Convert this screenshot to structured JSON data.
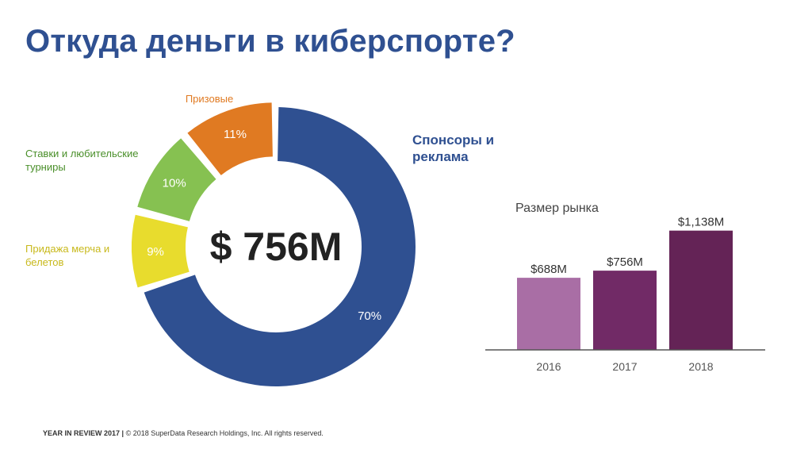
{
  "slide": {
    "title": "Откуда деньги в киберспорте?",
    "footer_left": "YEAR IN REVIEW 2017",
    "footer_sep": "|",
    "footer_right": "© 2018 SuperData Research Holdings, Inc. All rights reserved."
  },
  "chart_data": [
    {
      "type": "pie",
      "center_label": "$ 756M",
      "slices": [
        {
          "name": "Спонсоры и реклама",
          "value": 70,
          "label": "70%",
          "color": "#2f5091"
        },
        {
          "name": "Придажа мерча и белетов",
          "value": 9,
          "label": "9%",
          "color": "#e8dc2d"
        },
        {
          "name": "Ставки и любительские турниры",
          "value": 10,
          "label": "10%",
          "color": "#86c151"
        },
        {
          "name": "Призовые",
          "value": 11,
          "label": "11%",
          "color": "#e07a22"
        }
      ],
      "category_label_colors": [
        "#2f5091",
        "#c8b91c",
        "#4a8f2a",
        "#e07a22"
      ]
    },
    {
      "type": "bar",
      "title": "Размер рынка",
      "categories": [
        "2016",
        "2017",
        "2018"
      ],
      "values": [
        688,
        756,
        1138
      ],
      "value_labels": [
        "$688M",
        "$756M",
        "$1,138M"
      ],
      "colors": [
        "#a96ea5",
        "#712a66",
        "#642356"
      ],
      "ylim": [
        0,
        1300
      ],
      "grid": false
    }
  ]
}
